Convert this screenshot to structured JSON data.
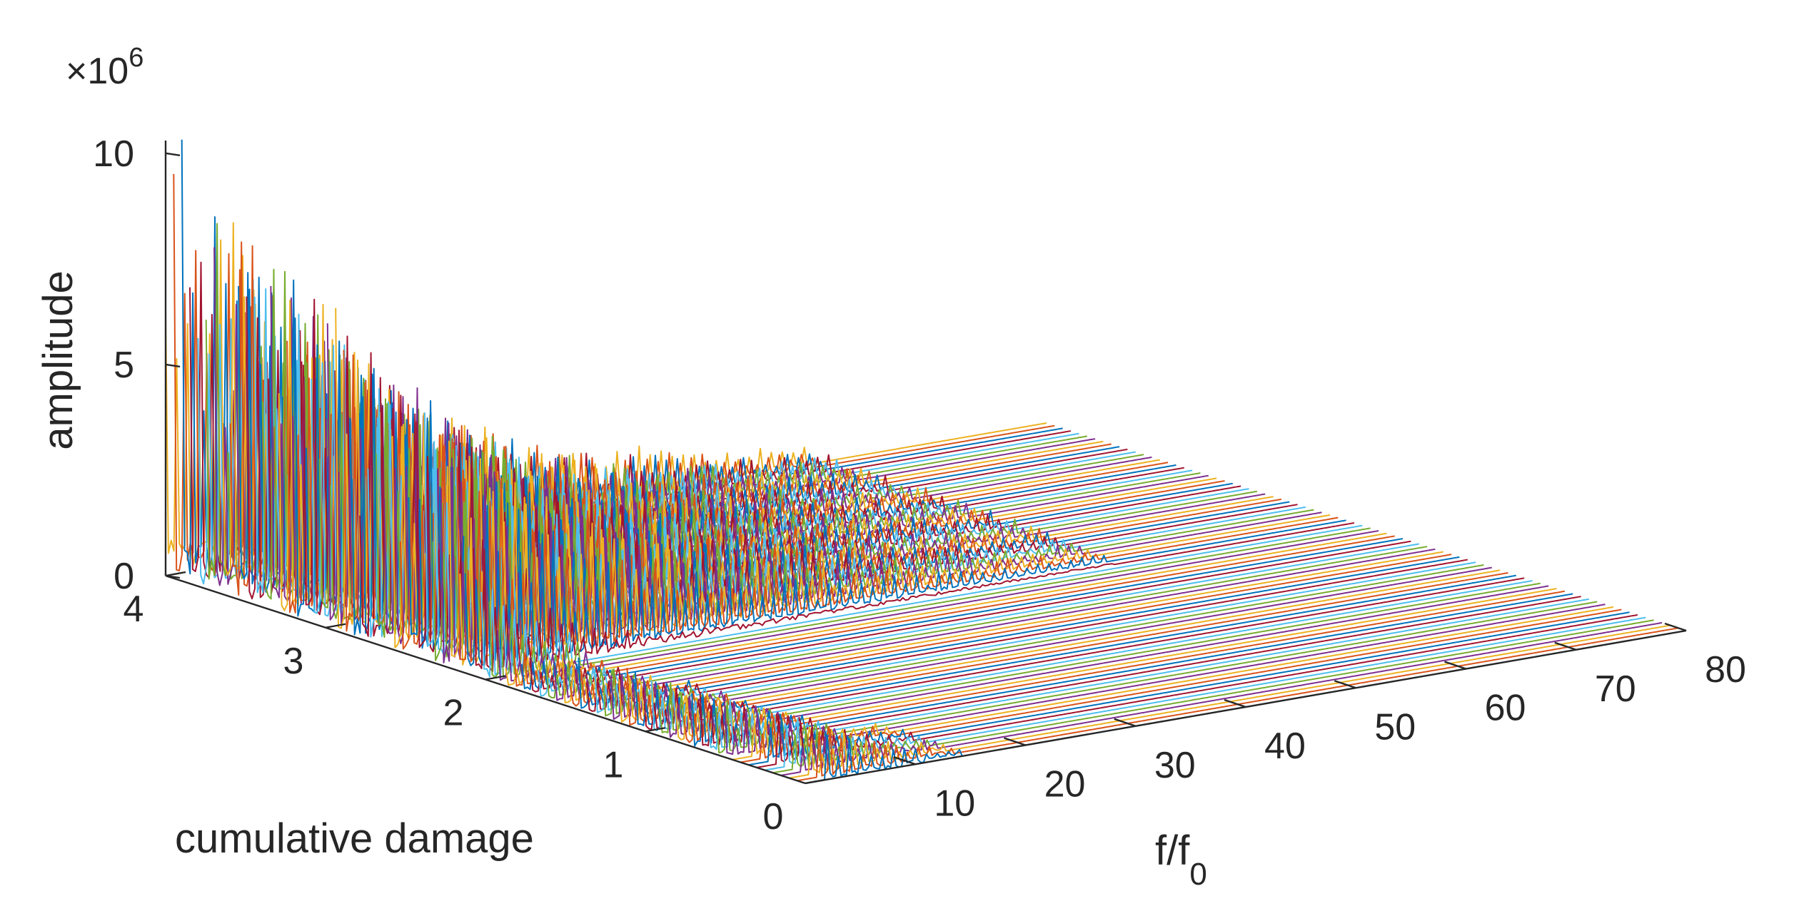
{
  "chart_data": {
    "type": "line",
    "projection": "3d-waterfall",
    "x_axis": {
      "label": "f/f",
      "label_subscript": "0",
      "range": [
        0,
        80
      ],
      "ticks": [
        10,
        20,
        30,
        40,
        50,
        60,
        70,
        80
      ]
    },
    "y_axis": {
      "label": "cumulative damage",
      "range": [
        0,
        4
      ],
      "ticks": [
        0,
        1,
        2,
        3,
        4
      ]
    },
    "z_axis": {
      "label": "amplitude",
      "range": [
        0,
        10
      ],
      "ticks": [
        0,
        5,
        10
      ],
      "multiplier": "×10",
      "multiplier_exponent": "6"
    },
    "grid": false,
    "legend": "none",
    "series_palette": [
      "#0072BD",
      "#D95319",
      "#EDB120",
      "#7E2F8E",
      "#77AC30",
      "#4DBEEE",
      "#A2142F"
    ],
    "series_count": 80,
    "spectrum_profile": {
      "note": "each trace is an FFT spectrum at a given cumulative damage level; sharp harmonic peaks, larger amplitude and more peaks at higher damage",
      "peak_envelope_by_damage": [
        {
          "damage": 0.0,
          "max_amplitude": 1.8,
          "active_band": [
            2,
            14
          ]
        },
        {
          "damage": 1.0,
          "max_amplitude": 1.4,
          "active_band": [
            0,
            10
          ]
        },
        {
          "damage": 1.9,
          "max_amplitude": 1.0,
          "active_band": [
            0,
            8
          ]
        },
        {
          "damage": 2.2,
          "max_amplitude": 5.5,
          "active_band": [
            0,
            58
          ]
        },
        {
          "damage": 3.0,
          "max_amplitude": 7.5,
          "active_band": [
            0,
            58
          ]
        },
        {
          "damage": 4.0,
          "max_amplitude": 10.4,
          "active_band": [
            0,
            58
          ]
        }
      ]
    }
  }
}
